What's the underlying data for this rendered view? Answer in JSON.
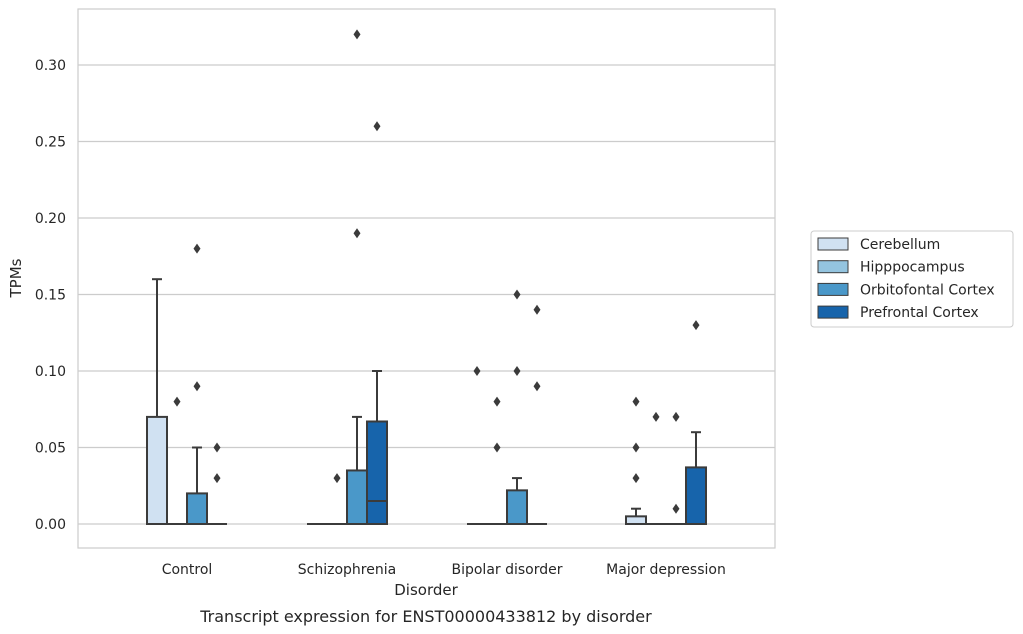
{
  "chart_data": {
    "type": "box",
    "xlabel": "Disorder",
    "ylabel": "TPMs",
    "caption": "Transcript expression for ENST00000433812 by disorder",
    "ylim": [
      -0.016,
      0.337
    ],
    "yticks": [
      0.0,
      0.05,
      0.1,
      0.15,
      0.2,
      0.25,
      0.3
    ],
    "ytick_labels": [
      "0.00",
      "0.05",
      "0.10",
      "0.15",
      "0.20",
      "0.25",
      "0.30"
    ],
    "grid": "horizontal",
    "legend_position": "outside-right",
    "categories": [
      "Control",
      "Schizophrenia",
      "Bipolar disorder",
      "Major depression"
    ],
    "series": [
      {
        "name": "Cerebellum",
        "color": "#d0e1f2",
        "boxes": [
          {
            "q1": 0.0,
            "median": 0.0,
            "q3": 0.07,
            "whisker_low": 0.0,
            "whisker_high": 0.16,
            "outliers": []
          },
          {
            "q1": 0.0,
            "median": 0.0,
            "q3": 0.0,
            "whisker_low": 0.0,
            "whisker_high": 0.0,
            "outliers": []
          },
          {
            "q1": 0.0,
            "median": 0.0,
            "q3": 0.0,
            "whisker_low": 0.0,
            "whisker_high": 0.0,
            "outliers": [
              0.1
            ]
          },
          {
            "q1": 0.0,
            "median": 0.0,
            "q3": 0.005,
            "whisker_low": 0.0,
            "whisker_high": 0.01,
            "outliers": [
              0.03,
              0.05,
              0.08
            ]
          }
        ]
      },
      {
        "name": "Hipppocampus",
        "color": "#94c4df",
        "boxes": [
          {
            "q1": 0.0,
            "median": 0.0,
            "q3": 0.0,
            "whisker_low": 0.0,
            "whisker_high": 0.0,
            "outliers": [
              0.08
            ]
          },
          {
            "q1": 0.0,
            "median": 0.0,
            "q3": 0.0,
            "whisker_low": 0.0,
            "whisker_high": 0.0,
            "outliers": [
              0.03
            ]
          },
          {
            "q1": 0.0,
            "median": 0.0,
            "q3": 0.0,
            "whisker_low": 0.0,
            "whisker_high": 0.0,
            "outliers": [
              0.05,
              0.08
            ]
          },
          {
            "q1": 0.0,
            "median": 0.0,
            "q3": 0.0,
            "whisker_low": 0.0,
            "whisker_high": 0.0,
            "outliers": [
              0.07
            ]
          }
        ]
      },
      {
        "name": "Orbitofontal Cortex",
        "color": "#4a98c9",
        "boxes": [
          {
            "q1": 0.0,
            "median": 0.0,
            "q3": 0.02,
            "whisker_low": 0.0,
            "whisker_high": 0.05,
            "outliers": [
              0.09,
              0.18
            ]
          },
          {
            "q1": 0.0,
            "median": 0.0,
            "q3": 0.035,
            "whisker_low": 0.0,
            "whisker_high": 0.07,
            "outliers": [
              0.19,
              0.32
            ]
          },
          {
            "q1": 0.0,
            "median": 0.0,
            "q3": 0.022,
            "whisker_low": 0.0,
            "whisker_high": 0.03,
            "outliers": [
              0.1,
              0.15
            ]
          },
          {
            "q1": 0.0,
            "median": 0.0,
            "q3": 0.0,
            "whisker_low": 0.0,
            "whisker_high": 0.0,
            "outliers": [
              0.01,
              0.07
            ]
          }
        ]
      },
      {
        "name": "Prefrontal Cortex",
        "color": "#1764ab",
        "boxes": [
          {
            "q1": 0.0,
            "median": 0.0,
            "q3": 0.0,
            "whisker_low": 0.0,
            "whisker_high": 0.0,
            "outliers": [
              0.03,
              0.05
            ]
          },
          {
            "q1": 0.0,
            "median": 0.015,
            "q3": 0.067,
            "whisker_low": 0.0,
            "whisker_high": 0.1,
            "outliers": [
              0.26
            ]
          },
          {
            "q1": 0.0,
            "median": 0.0,
            "q3": 0.0,
            "whisker_low": 0.0,
            "whisker_high": 0.0,
            "outliers": [
              0.09,
              0.14
            ]
          },
          {
            "q1": 0.0,
            "median": 0.0,
            "q3": 0.037,
            "whisker_low": 0.0,
            "whisker_high": 0.06,
            "outliers": [
              0.13
            ]
          }
        ]
      }
    ]
  },
  "colors": {
    "box_edge": "#3b3b3b",
    "grid": "#cccccc",
    "spine": "#cccccc",
    "outlier": "#3b3b3b"
  }
}
